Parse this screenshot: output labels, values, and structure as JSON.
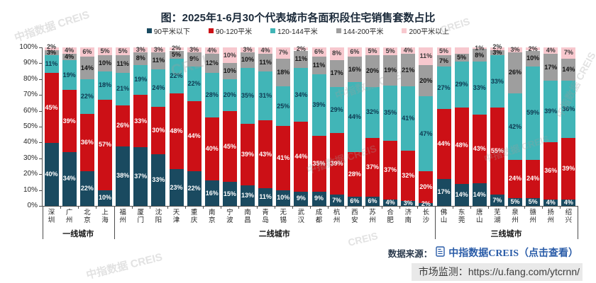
{
  "title": "图：2025年1-6月30个代表城市各面积段住宅销售套数占比",
  "legend": [
    {
      "label": "90平米以下",
      "color": "#1a4a60"
    },
    {
      "label": "90-120平米",
      "color": "#cc1016"
    },
    {
      "label": "120-144平米",
      "color": "#41b5b7"
    },
    {
      "label": "144-200平米",
      "color": "#9e9e9e"
    },
    {
      "label": "200平米以上",
      "color": "#f7c8ce"
    }
  ],
  "y_axis": {
    "tick_labels": [
      "100%",
      "90%",
      "80%",
      "70%",
      "60%",
      "50%",
      "40%",
      "30%",
      "20%",
      "10%",
      "0%"
    ]
  },
  "groups": [
    {
      "label": "一线城市",
      "count": 4
    },
    {
      "label": "二线城市",
      "count": 18
    },
    {
      "label": "三线城市",
      "count": 8
    }
  ],
  "chart_data": {
    "type": "bar",
    "stacked": true,
    "unit": "%",
    "ylim": [
      0,
      100
    ],
    "title": "图：2025年1-6月30个代表城市各面积段住宅销售套数占比",
    "categories": [
      "深圳",
      "广州",
      "北京",
      "上海",
      "福州",
      "厦门",
      "沈阳",
      "天津",
      "重庆",
      "南京",
      "宁波",
      "南昌",
      "青岛",
      "无锡",
      "武汉",
      "成都",
      "杭州",
      "西安",
      "苏州",
      "合肥",
      "济南",
      "长沙",
      "佛山",
      "东莞",
      "唐山",
      "芜湖",
      "泉州",
      "赣州",
      "扬州",
      "绍兴"
    ],
    "series": [
      {
        "name": "90平米以下",
        "color": "#1a4a60",
        "label_color": "#ffffff",
        "values": [
          40,
          34,
          22,
          10,
          38,
          37,
          33,
          23,
          22,
          16,
          15,
          13,
          11,
          10,
          9,
          9,
          7,
          6,
          6,
          4,
          3,
          2,
          17,
          14,
          14,
          7,
          5,
          5,
          4,
          4
        ],
        "labels": [
          "40%",
          "34%",
          "22%",
          "10%",
          "38%",
          "37%",
          "33%",
          "23%",
          "22%",
          "16%",
          "15%",
          "13%",
          "11%",
          "10%",
          "9%",
          "9%",
          "7%",
          "6%",
          "6%",
          "4%",
          "3%",
          "2%",
          "17%",
          "14%",
          "14%",
          "7%",
          "5%",
          "5%",
          "4%",
          "4%"
        ]
      },
      {
        "name": "90-120平米",
        "color": "#cc1016",
        "label_color": "#ffffff",
        "values": [
          45,
          39,
          36,
          57,
          26,
          33,
          30,
          48,
          44,
          40,
          45,
          39,
          43,
          41,
          44,
          35,
          39,
          28,
          37,
          37,
          32,
          20,
          44,
          48,
          43,
          55,
          24,
          24,
          36,
          39
        ],
        "labels": [
          "45%",
          "39%",
          "36%",
          "57%",
          "26%",
          "33%",
          "30%",
          "48%",
          "44%",
          "40%",
          "45%",
          "39%",
          "43%",
          "41%",
          "44%",
          "35%",
          "39%",
          "28%",
          "37%",
          "37%",
          "32%",
          "20%",
          "44%",
          "48%",
          "43%",
          "55%",
          "24%",
          "24%",
          "36%",
          "39%"
        ]
      },
      {
        "name": "120-144平米",
        "color": "#41b5b7",
        "label_color": "#0e3a52",
        "values": [
          11,
          19,
          22,
          18,
          21,
          19,
          24,
          22,
          22,
          28,
          20,
          35,
          31,
          25,
          34,
          39,
          29,
          44,
          32,
          35,
          41,
          47,
          27,
          29,
          33,
          33,
          42,
          59,
          39,
          36
        ],
        "labels": [
          "11%",
          "19%",
          "22%",
          "18%",
          "21%",
          "19%",
          "24%",
          "22%",
          "22%",
          "28%",
          "20%",
          "35%",
          "31%",
          "25%",
          "34%",
          "39%",
          "29%",
          "44%",
          "32%",
          "35%",
          "41%",
          "47%",
          "27%",
          "29%",
          "33%",
          "33%",
          "42%",
          "59%",
          "39%",
          "36%"
        ]
      },
      {
        "name": "144-200平米",
        "color": "#9e9e9e",
        "label_color": "#141414",
        "values": [
          3,
          4,
          14,
          10,
          11,
          8,
          11,
          5,
          9,
          12,
          10,
          10,
          11,
          18,
          11,
          11,
          17,
          16,
          20,
          19,
          21,
          20,
          7,
          5,
          8,
          3,
          26,
          10,
          17,
          14
        ],
        "labels": [
          "3%",
          "4%",
          "14%",
          "10%",
          "11%",
          "8%",
          "11%",
          "5%",
          "9%",
          "12%",
          "10%",
          "10%",
          "11%",
          "18%",
          "11%",
          "11%",
          "17%",
          "16%",
          "20%",
          "19%",
          "21%",
          "20%",
          "7%",
          "5%",
          "8%",
          "3%",
          "26%",
          "10%",
          "17%",
          "14%"
        ]
      },
      {
        "name": "200平米以上",
        "color": "#f7c8ce",
        "label_color": "#3a3a3a",
        "values": [
          2,
          4,
          6,
          5,
          5,
          3,
          3,
          2,
          3,
          4,
          10,
          3,
          4,
          7,
          2,
          6,
          8,
          6,
          5,
          5,
          4,
          11,
          5,
          4,
          1,
          2,
          3,
          2,
          4,
          7
        ],
        "labels": [
          "2%",
          "4%",
          "6%",
          "5%",
          "5%",
          "3%",
          "3%",
          "2%",
          "3%",
          "4%",
          "10%",
          "3%",
          "4%",
          "7%",
          "2%",
          "6%",
          "8%",
          "6%",
          "5%",
          "5%",
          "4%",
          "11%",
          "5%",
          "",
          "1%",
          "2%",
          "3%",
          "2%",
          "4%",
          "7%"
        ]
      }
    ]
  },
  "source_line": {
    "prefix": "数据来源：",
    "icon": "document-icon",
    "link_name": "中指数据",
    "link_brand": "CREIS",
    "link_suffix": "（点击查看）"
  },
  "monitor_line": {
    "label": "市场监测：",
    "url_text": "https://u.fang.com/ytcrnn/"
  },
  "watermark": {
    "text": "中指数据 CREIS",
    "short_text": "CREIS"
  }
}
